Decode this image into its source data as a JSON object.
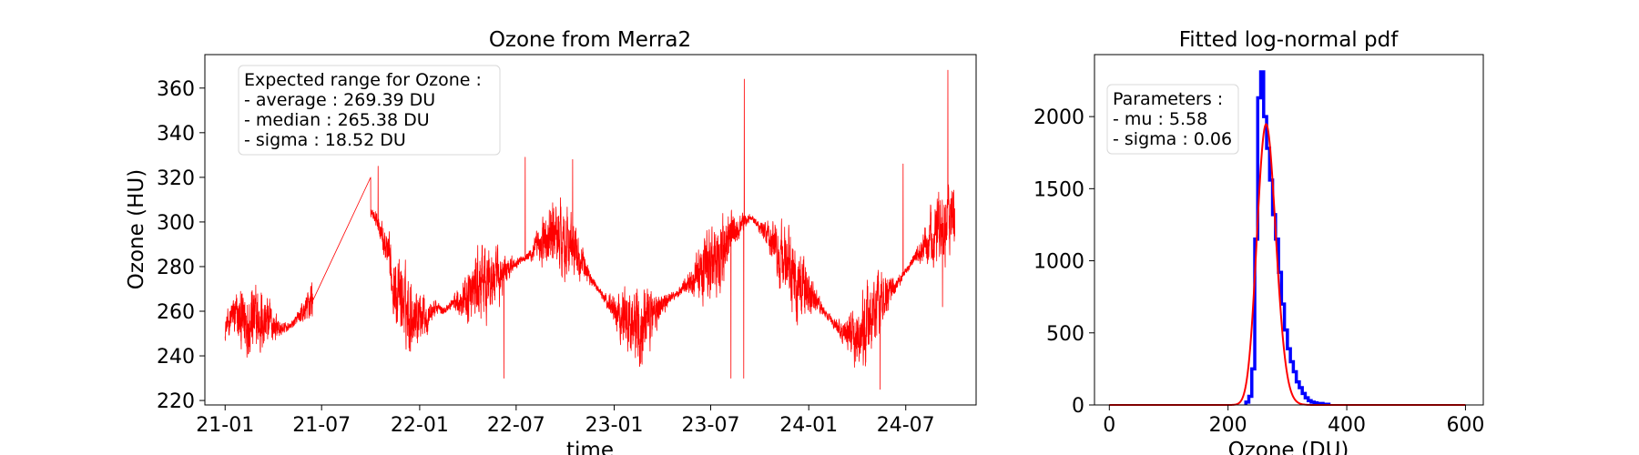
{
  "chart_data": [
    {
      "type": "line",
      "title": "Ozone from Merra2",
      "xlabel": "time",
      "ylabel": "Ozone (HU)",
      "x_tick_labels": [
        "21-01",
        "21-07",
        "22-01",
        "22-07",
        "23-01",
        "23-07",
        "24-01",
        "24-07"
      ],
      "y_ticks": [
        220,
        240,
        260,
        280,
        300,
        320,
        340,
        360
      ],
      "ylim": [
        218,
        375
      ],
      "xlim": [
        "2020-11-24",
        "2024-11-10"
      ],
      "grid": false,
      "color": "#ff0000",
      "annotation": [
        "Expected range for Ozone :",
        "- average : 269.39 DU",
        "- median : 265.38 DU",
        "- sigma : 18.52 DU"
      ],
      "series": [
        {
          "points": [
            [
              "2021-01-01",
              252
            ],
            [
              "2021-01-15",
              258
            ],
            [
              "2021-02-01",
              255
            ],
            [
              "2021-02-15",
              257
            ],
            [
              "2021-03-01",
              255
            ],
            [
              "2021-03-15",
              256
            ],
            [
              "2021-04-01",
              254
            ],
            [
              "2021-04-15",
              252
            ],
            [
              "2021-05-01",
              253
            ],
            [
              "2021-05-15",
              256
            ],
            [
              "2021-06-01",
              260
            ],
            [
              "2021-06-15",
              268
            ],
            [
              "2021-10-01",
              304
            ],
            [
              "2021-10-15",
              300
            ],
            [
              "2021-11-01",
              286
            ],
            [
              "2021-11-15",
              270
            ],
            [
              "2021-12-01",
              264
            ],
            [
              "2021-12-15",
              259
            ],
            [
              "2022-01-01",
              260
            ],
            [
              "2022-01-15",
              258
            ],
            [
              "2022-02-01",
              262
            ],
            [
              "2022-02-15",
              260
            ],
            [
              "2022-03-01",
              263
            ],
            [
              "2022-03-15",
              265
            ],
            [
              "2022-04-01",
              266
            ],
            [
              "2022-04-15",
              270
            ],
            [
              "2022-05-01",
              272
            ],
            [
              "2022-05-15",
              275
            ],
            [
              "2022-06-01",
              274
            ],
            [
              "2022-06-15",
              280
            ],
            [
              "2022-07-01",
              282
            ],
            [
              "2022-07-15",
              284
            ],
            [
              "2022-08-01",
              286
            ],
            [
              "2022-08-15",
              290
            ],
            [
              "2022-09-01",
              293
            ],
            [
              "2022-09-15",
              295
            ],
            [
              "2022-10-01",
              292
            ],
            [
              "2022-10-15",
              288
            ],
            [
              "2022-11-01",
              282
            ],
            [
              "2022-11-15",
              276
            ],
            [
              "2022-12-01",
              270
            ],
            [
              "2022-12-15",
              265
            ],
            [
              "2023-01-01",
              262
            ],
            [
              "2023-01-15",
              258
            ],
            [
              "2023-02-01",
              256
            ],
            [
              "2023-02-15",
              256
            ],
            [
              "2023-03-01",
              255
            ],
            [
              "2023-03-15",
              260
            ],
            [
              "2023-04-01",
              262
            ],
            [
              "2023-04-15",
              266
            ],
            [
              "2023-05-01",
              268
            ],
            [
              "2023-05-15",
              272
            ],
            [
              "2023-06-01",
              275
            ],
            [
              "2023-06-15",
              279
            ],
            [
              "2023-07-01",
              282
            ],
            [
              "2023-07-15",
              286
            ],
            [
              "2023-08-01",
              291
            ],
            [
              "2023-08-15",
              296
            ],
            [
              "2023-09-01",
              300
            ],
            [
              "2023-09-15",
              302
            ],
            [
              "2023-10-01",
              298
            ],
            [
              "2023-10-15",
              294
            ],
            [
              "2023-11-01",
              288
            ],
            [
              "2023-11-15",
              282
            ],
            [
              "2023-12-01",
              276
            ],
            [
              "2023-12-15",
              272
            ],
            [
              "2024-01-01",
              268
            ],
            [
              "2024-01-15",
              264
            ],
            [
              "2024-02-01",
              259
            ],
            [
              "2024-02-15",
              255
            ],
            [
              "2024-03-01",
              252
            ],
            [
              "2024-03-15",
              250
            ],
            [
              "2024-04-01",
              248
            ],
            [
              "2024-04-15",
              252
            ],
            [
              "2024-05-01",
              258
            ],
            [
              "2024-05-15",
              265
            ],
            [
              "2024-06-01",
              268
            ],
            [
              "2024-06-15",
              272
            ],
            [
              "2024-07-01",
              278
            ],
            [
              "2024-07-15",
              283
            ],
            [
              "2024-08-01",
              288
            ],
            [
              "2024-08-15",
              292
            ],
            [
              "2024-09-01",
              298
            ],
            [
              "2024-09-15",
              302
            ],
            [
              "2024-10-01",
              300
            ]
          ],
          "typical_spread": 12,
          "peaks": [
            [
              "2021-09-26",
              320
            ],
            [
              "2021-10-15",
              325
            ],
            [
              "2022-07-18",
              329
            ],
            [
              "2022-06-08",
              230
            ],
            [
              "2022-10-15",
              328
            ],
            [
              "2023-08-08",
              230
            ],
            [
              "2023-09-02",
              364
            ],
            [
              "2023-09-01",
              230
            ],
            [
              "2024-05-14",
              225
            ],
            [
              "2024-09-18",
              368
            ],
            [
              "2024-06-26",
              326
            ],
            [
              "2024-09-08",
              262
            ]
          ]
        }
      ]
    },
    {
      "type": "histogram",
      "title": "Fitted log-normal pdf",
      "xlabel": "Ozone (DU)",
      "ylabel": "",
      "x_ticks": [
        0,
        200,
        400,
        600
      ],
      "y_ticks": [
        0,
        500,
        1000,
        1500,
        2000
      ],
      "xlim": [
        -25,
        630
      ],
      "ylim": [
        0,
        2430
      ],
      "grid": false,
      "annotation": [
        "Parameters :",
        "- mu : 5.58",
        "- sigma : 0.06"
      ],
      "histogram": {
        "name": "",
        "color": "#0000ff",
        "bin_edges": [
          230,
          235,
          240,
          245,
          250,
          255,
          260,
          265,
          270,
          275,
          280,
          285,
          290,
          295,
          300,
          305,
          310,
          315,
          320,
          325,
          330,
          335,
          340,
          345,
          350,
          360,
          370
        ],
        "counts": [
          20,
          60,
          250,
          1150,
          2130,
          2310,
          2000,
          1780,
          1560,
          1320,
          1150,
          920,
          700,
          520,
          390,
          300,
          230,
          160,
          120,
          80,
          50,
          30,
          20,
          15,
          10,
          5
        ]
      },
      "fit": {
        "name": "",
        "color": "#ff0000",
        "x_range": [
          0,
          600
        ],
        "peak_value": 1930,
        "mode": 262,
        "mu": 5.58,
        "sigma": 0.06
      }
    }
  ]
}
